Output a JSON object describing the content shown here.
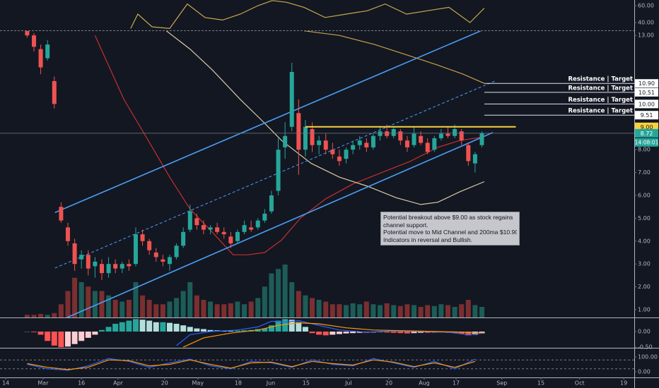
{
  "chart_data": [
    {
      "type": "line",
      "ylim": [
        31.7,
        66.7
      ],
      "yticks": [
        {
          "value": 60,
          "label": "60.00"
        },
        {
          "value": 40,
          "label": "40.00"
        }
      ],
      "series": [
        {
          "color": "#c9a84c",
          "x": [
            38.5,
            40.6,
            44.8,
            50,
            55.2,
            60.4,
            65.6,
            70.8,
            76,
            80.2,
            84.4,
            89.6,
            95.8,
            102,
            108.3,
            113.5,
            119.8,
            126,
            132.3,
            138.5,
            142.7
          ],
          "values": [
            33,
            50,
            35,
            33,
            62,
            46,
            43,
            50,
            60,
            66,
            64,
            58,
            46,
            50,
            54,
            62,
            50,
            54,
            58,
            40,
            57
          ]
        }
      ]
    },
    {
      "type": "candlestick",
      "xlim": [
        0,
        186.9
      ],
      "ylim": [
        0.66,
        13.19
      ],
      "xticks": [
        {
          "value": 1.7,
          "label": "14"
        },
        {
          "value": 12.7,
          "label": "Mar"
        },
        {
          "value": 24,
          "label": "16"
        },
        {
          "value": 34.8,
          "label": "Apr"
        },
        {
          "value": 48.5,
          "label": "20"
        },
        {
          "value": 58.3,
          "label": "May"
        },
        {
          "value": 70.2,
          "label": "18"
        },
        {
          "value": 79.8,
          "label": "Jun"
        },
        {
          "value": 90.2,
          "label": "15"
        },
        {
          "value": 102.7,
          "label": "Jul"
        },
        {
          "value": 114.6,
          "label": "20"
        },
        {
          "value": 125,
          "label": "Aug"
        },
        {
          "value": 134.4,
          "label": "17"
        },
        {
          "value": 147.9,
          "label": "Sep"
        },
        {
          "value": 159.4,
          "label": "15"
        },
        {
          "value": 170.8,
          "label": "Oct"
        },
        {
          "value": 183.8,
          "label": "19"
        }
      ],
      "yticks": [
        {
          "value": 1,
          "label": "1.00"
        },
        {
          "value": 2,
          "label": "2.00"
        },
        {
          "value": 3,
          "label": "3.00"
        },
        {
          "value": 4,
          "label": "4.00"
        },
        {
          "value": 5,
          "label": "5.00"
        },
        {
          "value": 6,
          "label": "6.00"
        },
        {
          "value": 7,
          "label": "7.00"
        },
        {
          "value": 8,
          "label": "8.00"
        },
        {
          "value": 13,
          "label": "13.00"
        }
      ],
      "up_color": "#26a69a",
      "down_color": "#ef5350",
      "vol_up_color": "#1d5c57",
      "vol_down_color": "#7b2f30",
      "x": [
        8,
        10,
        12,
        14,
        16,
        18,
        20,
        22,
        24,
        26,
        28,
        30,
        32,
        34,
        36,
        38,
        40,
        42,
        44,
        46,
        48,
        50,
        52,
        54,
        56,
        58,
        60,
        62,
        64,
        66,
        68,
        70,
        72,
        74,
        76,
        78,
        80,
        82,
        84,
        86,
        88,
        90,
        92,
        94,
        96,
        98,
        100,
        102,
        104,
        106,
        108,
        110,
        112,
        114,
        116,
        118,
        120,
        122,
        124,
        126,
        128,
        130,
        132,
        134,
        136,
        138,
        140,
        142
      ],
      "ohlc": [
        [
          13.2,
          13.3,
          12.9,
          13.0
        ],
        [
          13.0,
          13.1,
          12.3,
          12.5
        ],
        [
          12.4,
          12.6,
          11.3,
          11.6
        ],
        [
          12.0,
          12.8,
          11.9,
          12.6
        ],
        [
          11.0,
          11.2,
          9.8,
          10.0
        ],
        [
          5.5,
          5.7,
          4.8,
          4.9
        ],
        [
          4.6,
          4.8,
          3.8,
          4.0
        ],
        [
          3.9,
          4.1,
          2.7,
          3.0
        ],
        [
          3.2,
          3.6,
          2.8,
          3.4
        ],
        [
          3.4,
          3.6,
          2.5,
          2.8
        ],
        [
          2.9,
          3.3,
          2.4,
          3.1
        ],
        [
          3.0,
          3.2,
          2.3,
          2.6
        ],
        [
          2.6,
          3.3,
          2.4,
          3.0
        ],
        [
          3.0,
          3.2,
          2.6,
          2.8
        ],
        [
          2.8,
          3.1,
          2.6,
          3.0
        ],
        [
          3.0,
          3.2,
          2.7,
          2.9
        ],
        [
          3.0,
          4.6,
          2.9,
          4.3
        ],
        [
          4.3,
          4.5,
          3.8,
          4.0
        ],
        [
          4.0,
          4.1,
          3.4,
          3.6
        ],
        [
          3.5,
          3.7,
          3.1,
          3.3
        ],
        [
          3.2,
          3.4,
          2.9,
          3.1
        ],
        [
          3.0,
          3.4,
          2.7,
          3.3
        ],
        [
          3.3,
          3.9,
          3.2,
          3.8
        ],
        [
          3.8,
          4.6,
          3.7,
          4.4
        ],
        [
          4.5,
          5.6,
          4.4,
          5.3
        ],
        [
          5.0,
          5.2,
          4.5,
          4.7
        ],
        [
          4.7,
          4.9,
          4.3,
          4.5
        ],
        [
          4.5,
          4.7,
          4.3,
          4.6
        ],
        [
          4.6,
          4.8,
          4.3,
          4.4
        ],
        [
          4.4,
          4.6,
          4.1,
          4.3
        ],
        [
          4.2,
          4.4,
          3.7,
          3.9
        ],
        [
          4.0,
          4.5,
          3.9,
          4.4
        ],
        [
          4.4,
          4.9,
          4.3,
          4.7
        ],
        [
          4.6,
          4.9,
          4.4,
          4.5
        ],
        [
          4.6,
          5.0,
          4.5,
          4.9
        ],
        [
          4.9,
          5.4,
          4.8,
          5.2
        ],
        [
          5.3,
          6.2,
          5.2,
          6.0
        ],
        [
          6.2,
          8.5,
          6.0,
          8.0
        ],
        [
          8.1,
          9.2,
          7.6,
          8.6
        ],
        [
          9.0,
          11.8,
          8.8,
          11.4
        ],
        [
          9.6,
          10.2,
          6.9,
          8.0
        ],
        [
          8.0,
          9.3,
          7.7,
          9.0
        ],
        [
          8.9,
          9.2,
          7.9,
          8.2
        ],
        [
          8.2,
          8.6,
          7.8,
          8.4
        ],
        [
          8.4,
          8.7,
          7.8,
          8.0
        ],
        [
          8.0,
          8.3,
          7.6,
          7.8
        ],
        [
          7.7,
          8.0,
          7.3,
          7.5
        ],
        [
          7.6,
          8.1,
          7.4,
          8.0
        ],
        [
          8.0,
          8.4,
          7.8,
          8.2
        ],
        [
          8.2,
          8.6,
          8.0,
          8.4
        ],
        [
          8.3,
          8.5,
          7.9,
          8.1
        ],
        [
          8.1,
          8.7,
          8.0,
          8.6
        ],
        [
          8.6,
          9.0,
          8.4,
          8.8
        ],
        [
          8.8,
          9.1,
          8.5,
          8.6
        ],
        [
          8.6,
          9.0,
          8.5,
          8.9
        ],
        [
          8.8,
          8.9,
          8.2,
          8.4
        ],
        [
          8.4,
          8.6,
          7.9,
          8.1
        ],
        [
          8.2,
          9.0,
          8.1,
          8.7
        ],
        [
          8.6,
          8.8,
          8.2,
          8.3
        ],
        [
          8.3,
          8.5,
          7.8,
          7.9
        ],
        [
          8.0,
          8.6,
          7.9,
          8.5
        ],
        [
          8.5,
          8.9,
          8.4,
          8.7
        ],
        [
          8.7,
          9.0,
          8.5,
          8.6
        ],
        [
          8.6,
          9.1,
          8.5,
          8.9
        ],
        [
          8.8,
          8.9,
          8.2,
          8.4
        ],
        [
          8.2,
          8.3,
          7.3,
          7.5
        ],
        [
          7.4,
          7.9,
          7.0,
          7.8
        ],
        [
          8.2,
          8.8,
          8.1,
          8.72
        ]
      ],
      "volume": [
        3,
        3,
        4,
        3,
        5,
        15,
        30,
        45,
        40,
        35,
        30,
        30,
        25,
        20,
        18,
        20,
        40,
        25,
        20,
        15,
        15,
        18,
        22,
        30,
        40,
        25,
        20,
        18,
        15,
        15,
        16,
        18,
        15,
        18,
        22,
        35,
        50,
        55,
        60,
        40,
        30,
        25,
        22,
        20,
        18,
        15,
        15,
        14,
        16,
        15,
        18,
        15,
        14,
        16,
        14,
        13,
        15,
        14,
        12,
        14,
        13,
        15,
        14,
        12,
        15,
        20,
        14,
        12
      ],
      "overlays": [
        {
          "color": "#c62f2f",
          "x": [
            28,
            36.5,
            43.7,
            50,
            56,
            62.5,
            68.7,
            73,
            78,
            83,
            88.5,
            96,
            104,
            112.5,
            121,
            129,
            135.4,
            142.3
          ],
          "values": [
            13.0,
            10.2,
            8.4,
            6.8,
            5.4,
            4.4,
            3.4,
            3.4,
            3.5,
            4.05,
            5.0,
            5.85,
            6.5,
            7.0,
            7.5,
            8.1,
            8.4,
            8.55
          ]
        },
        {
          "color": "#d8cca6",
          "x": [
            49,
            56,
            62.5,
            70.8,
            77,
            83,
            91.7,
            100,
            108.3,
            116.7,
            124,
            129,
            135.4,
            142.7
          ],
          "values": [
            13.2,
            12.4,
            11.5,
            10.2,
            9.3,
            8.4,
            7.4,
            6.8,
            6.4,
            5.9,
            5.6,
            5.7,
            6.15,
            6.6
          ]
        },
        {
          "color": "#c8a04a",
          "x": [
            89.6,
            100,
            110.4,
            120.8,
            129,
            136.5,
            142.7
          ],
          "values": [
            13.2,
            13.0,
            12.6,
            12.1,
            11.7,
            11.3,
            10.9
          ]
        }
      ],
      "channel": [
        {
          "color": "#4a9ff5",
          "dashed": false,
          "x": [
            16.2,
            141.7
          ],
          "values": [
            5.25,
            13.2
          ]
        },
        {
          "color": "#4a9ff5",
          "dashed": true,
          "x": [
            16.2,
            145.8
          ],
          "values": [
            2.82,
            11.0
          ]
        },
        {
          "color": "#4a9ff5",
          "dashed": false,
          "x": [
            19.8,
            145.2
          ],
          "values": [
            0.66,
            8.75
          ]
        }
      ],
      "level": {
        "value": 9,
        "label": "9.00",
        "color": "#f7d23e",
        "x": [
          90,
          152
        ]
      },
      "last": {
        "value": 8.72,
        "label": "8.72",
        "color": "#26a69a",
        "countdown": "14:08:01"
      },
      "resistance": [
        {
          "value": 10.9,
          "label": "10.90",
          "text": "Resistance | Target"
        },
        {
          "value": 10.51,
          "label": "10.51",
          "text": "Resistance | Target"
        },
        {
          "value": 10,
          "label": "10.00",
          "text": "Resistance | Target"
        },
        {
          "value": 9.51,
          "label": "9.51",
          "text": "Resistance | Target"
        }
      ],
      "annotation": [
        "Potential breakout above $9.00 as stock regains",
        "channel support.",
        "Potential move to Mid Channel and 200ma $10.90",
        "Indicators in reversal and Bullish."
      ]
    },
    {
      "type": "macd",
      "ylim": [
        -0.52,
        0.43
      ],
      "yticks": [
        {
          "value": 0,
          "label": "0.00"
        },
        {
          "value": -0.5,
          "label": "-0.50"
        }
      ],
      "up_color": "#26a69a",
      "up_fade_color": "#b2dfdb",
      "down_color": "#ff5252",
      "down_fade_color": "#ffcdd2",
      "histogram": [
        0,
        -0.02,
        -0.1,
        -0.3,
        -0.45,
        -0.5,
        -0.48,
        -0.4,
        -0.3,
        -0.2,
        -0.1,
        0.05,
        0.15,
        0.25,
        0.3,
        0.35,
        0.4,
        0.38,
        0.35,
        0.3,
        0.3,
        0.28,
        0.25,
        0.2,
        0.15,
        0.1,
        0.08,
        0.05,
        0.04,
        0.03,
        0.02,
        0.03,
        0.04,
        0.05,
        0.08,
        0.1,
        0.2,
        0.35,
        0.4,
        0.38,
        0.3,
        0.15,
        -0.05,
        -0.1,
        -0.12,
        -0.1,
        -0.08,
        -0.06,
        -0.05,
        -0.04,
        -0.04,
        -0.03,
        -0.02,
        -0.03,
        -0.04,
        -0.05,
        -0.06,
        -0.05,
        -0.04,
        -0.04,
        -0.03,
        -0.03,
        -0.04,
        -0.05,
        -0.08,
        -0.12,
        -0.1,
        -0.06
      ],
      "series": [
        {
          "color": "#2962ff",
          "x": [
            52,
            56,
            62,
            70,
            76,
            80,
            84,
            88,
            92,
            100,
            108,
            116,
            124,
            132,
            138,
            142.7
          ],
          "values": [
            -0.45,
            -0.1,
            0,
            0.05,
            0.15,
            0.33,
            0.3,
            0.35,
            0.25,
            0.05,
            -0.02,
            0.02,
            0,
            -0.02,
            -0.1,
            -0.05
          ]
        },
        {
          "color": "#ff9800",
          "x": [
            54,
            60,
            68,
            76,
            82,
            88,
            94,
            102,
            110,
            118,
            126,
            134,
            142.7
          ],
          "values": [
            -0.5,
            -0.2,
            -0.05,
            0.05,
            0.2,
            0.28,
            0.25,
            0.12,
            0.05,
            0.03,
            0.01,
            -0.01,
            -0.04
          ]
        }
      ]
    },
    {
      "type": "line",
      "ylim": [
        -38,
        157
      ],
      "yticks": [
        {
          "value": 100,
          "label": "100.00"
        },
        {
          "value": 0,
          "label": "0.00"
        }
      ],
      "levels": [
        80,
        20
      ],
      "series": [
        {
          "color": "#2962ff",
          "x": [
            8,
            14,
            20,
            26,
            32,
            38,
            44,
            50,
            56,
            62,
            68,
            74,
            80,
            86,
            92,
            98,
            104,
            110,
            116,
            122,
            128,
            134,
            140
          ],
          "values": [
            50,
            20,
            10,
            40,
            90,
            70,
            30,
            60,
            85,
            40,
            20,
            70,
            60,
            30,
            80,
            50,
            40,
            90,
            60,
            30,
            70,
            20,
            85
          ]
        },
        {
          "color": "#ff9800",
          "x": [
            8,
            14,
            20,
            26,
            32,
            38,
            44,
            50,
            56,
            62,
            68,
            74,
            80,
            86,
            92,
            98,
            104,
            110,
            116,
            122,
            128,
            134,
            140
          ],
          "values": [
            55,
            30,
            15,
            30,
            80,
            75,
            40,
            50,
            80,
            50,
            25,
            60,
            65,
            35,
            70,
            55,
            45,
            80,
            65,
            35,
            60,
            30,
            70
          ]
        }
      ]
    }
  ]
}
